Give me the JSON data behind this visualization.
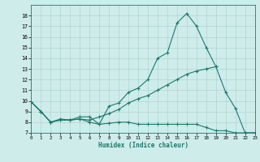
{
  "xlabel": "Humidex (Indice chaleur)",
  "x_values": [
    0,
    1,
    2,
    3,
    4,
    5,
    6,
    7,
    8,
    9,
    10,
    11,
    12,
    13,
    14,
    15,
    16,
    17,
    18,
    19,
    20,
    21,
    22,
    23
  ],
  "line1": [
    9.9,
    9.0,
    8.0,
    8.3,
    8.2,
    8.5,
    8.5,
    7.8,
    9.5,
    9.8,
    10.8,
    11.2,
    12.0,
    14.0,
    14.5,
    17.3,
    18.2,
    17.0,
    15.0,
    13.2,
    10.8,
    9.3,
    7.0,
    7.0
  ],
  "line2": [
    9.9,
    9.0,
    8.0,
    8.2,
    8.2,
    8.3,
    8.2,
    8.5,
    8.8,
    9.2,
    9.8,
    10.2,
    10.5,
    11.0,
    11.5,
    12.0,
    12.5,
    12.8,
    13.0,
    13.2,
    null,
    null,
    null,
    null
  ],
  "line3": [
    9.9,
    9.0,
    8.0,
    8.2,
    8.2,
    8.3,
    8.0,
    7.8,
    7.9,
    8.0,
    8.0,
    7.8,
    7.8,
    7.8,
    7.8,
    7.8,
    7.8,
    7.8,
    7.5,
    7.2,
    7.2,
    7.0,
    7.0,
    7.0
  ],
  "line_color": "#1a7a6e",
  "bg_color": "#ceecea",
  "grid_color": "#b0d4d0",
  "ylim": [
    7,
    19
  ],
  "xlim": [
    0,
    23
  ],
  "yticks": [
    7,
    8,
    9,
    10,
    11,
    12,
    13,
    14,
    15,
    16,
    17,
    18
  ],
  "xticks": [
    0,
    1,
    2,
    3,
    4,
    5,
    6,
    7,
    8,
    9,
    10,
    11,
    12,
    13,
    14,
    15,
    16,
    17,
    18,
    19,
    20,
    21,
    22,
    23
  ]
}
